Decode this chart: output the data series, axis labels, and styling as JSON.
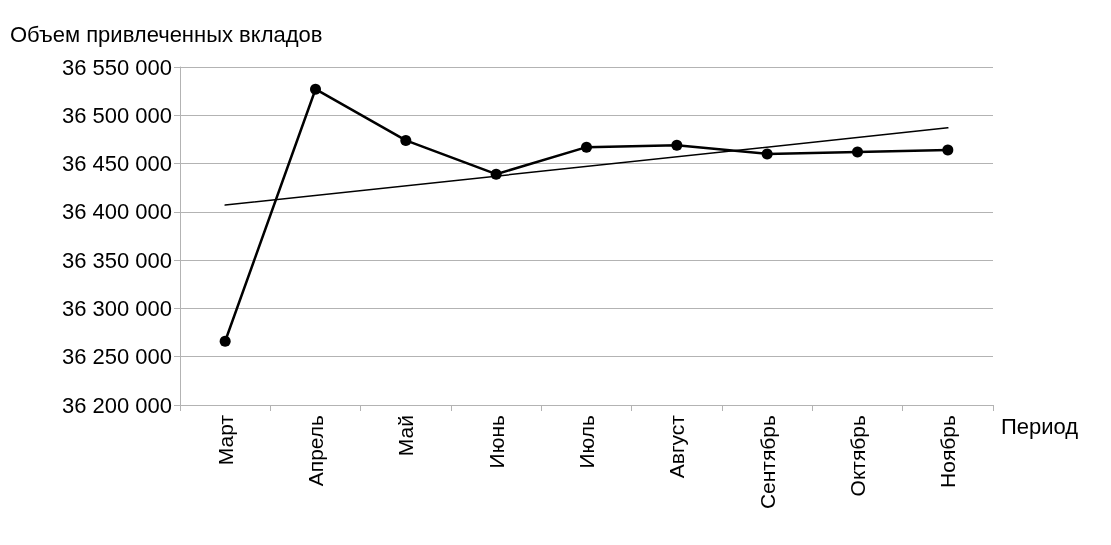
{
  "chart_data": {
    "type": "line",
    "ylabel": "Объем привлеченных вкладов",
    "xlabel": "Период",
    "categories": [
      "Март",
      "Апрель",
      "Май",
      "Июнь",
      "Июль",
      "Август",
      "Сентябрь",
      "Октябрь",
      "Ноябрь"
    ],
    "series": [
      {
        "color": "#000000",
        "marker": "circle",
        "values": [
          36266000,
          36527000,
          36474000,
          36439000,
          36467000,
          36469000,
          36460000,
          36462000,
          36464000
        ]
      },
      {
        "color": "#000000",
        "marker": "none",
        "x": [
          "Март",
          "Ноябрь"
        ],
        "values": [
          36407000,
          36487000
        ]
      }
    ],
    "ylim": [
      36200000,
      36550000
    ],
    "yticks": [
      36200000,
      36250000,
      36300000,
      36350000,
      36400000,
      36450000,
      36500000,
      36550000
    ],
    "grid": "y",
    "line_style": "solid"
  }
}
